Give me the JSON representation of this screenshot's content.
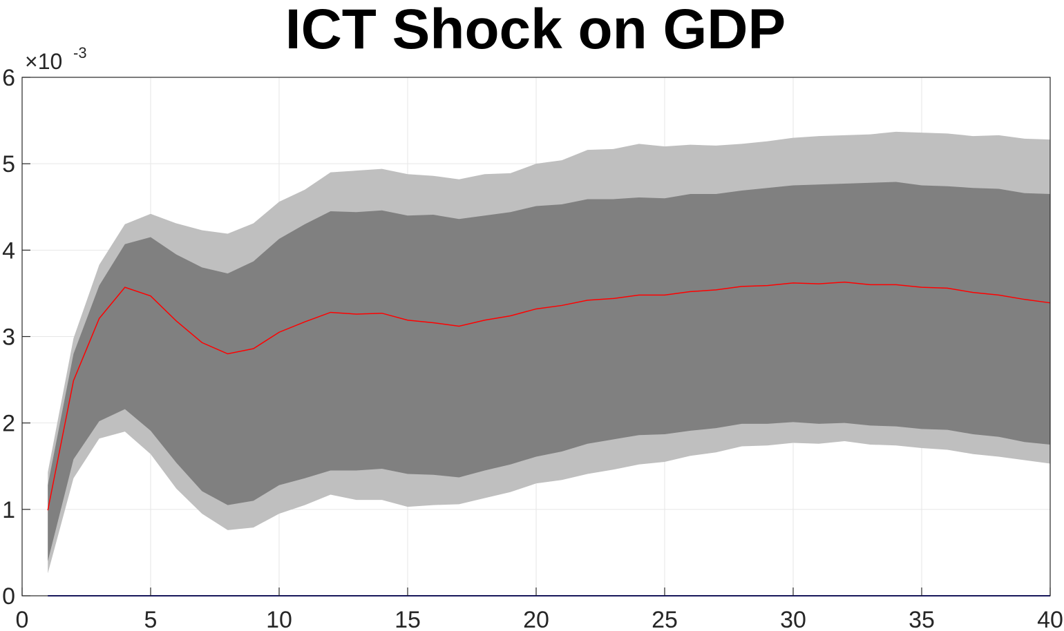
{
  "chart_data": {
    "type": "area",
    "title": "ICT Shock on GDP",
    "xlabel": "",
    "ylabel": "",
    "xlim": [
      0,
      40
    ],
    "ylim": [
      0,
      0.006
    ],
    "y_exponent_label": {
      "base": "×10",
      "exponent": "-3"
    },
    "x_ticks": [
      "0",
      "5",
      "10",
      "15",
      "20",
      "25",
      "30",
      "35",
      "40"
    ],
    "y_ticks": [
      "0",
      "1",
      "2",
      "3",
      "4",
      "5",
      "6"
    ],
    "grid": true,
    "colors": {
      "outer_band": "#bfbfbf",
      "inner_band": "#808080",
      "median": "#ff0000",
      "zero_line": "#0000aa",
      "grid": "#e6e6e6",
      "axis": "#262626"
    },
    "x": [
      1,
      2,
      3,
      4,
      5,
      6,
      7,
      8,
      9,
      10,
      11,
      12,
      13,
      14,
      15,
      16,
      17,
      18,
      19,
      20,
      21,
      22,
      23,
      24,
      25,
      26,
      27,
      28,
      29,
      30,
      31,
      32,
      33,
      34,
      35,
      36,
      37,
      38,
      39,
      40
    ],
    "series": [
      {
        "values": [
          0.00143,
          0.00298,
          0.00383,
          0.0043,
          0.00442,
          0.00431,
          0.00423,
          0.00419,
          0.00431,
          0.00456,
          0.0047,
          0.0049,
          0.00492,
          0.00494,
          0.00488,
          0.00486,
          0.00482,
          0.00488,
          0.00489,
          0.005,
          0.00504,
          0.00516,
          0.00517,
          0.00523,
          0.0052,
          0.00522,
          0.00521,
          0.00523,
          0.00526,
          0.0053,
          0.00532,
          0.00533,
          0.00534,
          0.00537,
          0.00536,
          0.00535,
          0.00532,
          0.00533,
          0.00529,
          0.00528
        ]
      },
      {
        "values": [
          0.00128,
          0.0028,
          0.00359,
          0.00407,
          0.00415,
          0.00395,
          0.0038,
          0.00373,
          0.00387,
          0.00413,
          0.0043,
          0.00445,
          0.00444,
          0.00446,
          0.0044,
          0.00441,
          0.00436,
          0.0044,
          0.00444,
          0.00451,
          0.00453,
          0.00459,
          0.00459,
          0.00461,
          0.0046,
          0.00465,
          0.00465,
          0.00469,
          0.00472,
          0.00475,
          0.00476,
          0.00477,
          0.00478,
          0.00479,
          0.00475,
          0.00474,
          0.00472,
          0.00471,
          0.00466,
          0.00465
        ]
      },
      {
        "values": [
          0.00099,
          0.00249,
          0.00321,
          0.00357,
          0.00347,
          0.00318,
          0.00293,
          0.0028,
          0.00286,
          0.00305,
          0.00317,
          0.00328,
          0.00326,
          0.00327,
          0.00319,
          0.00316,
          0.00312,
          0.00319,
          0.00324,
          0.00332,
          0.00336,
          0.00342,
          0.00344,
          0.00348,
          0.00348,
          0.00352,
          0.00354,
          0.00358,
          0.00359,
          0.00362,
          0.00361,
          0.00363,
          0.0036,
          0.0036,
          0.00357,
          0.00356,
          0.00351,
          0.00348,
          0.00343,
          0.00339
        ]
      },
      {
        "values": [
          0.0004,
          0.00158,
          0.00202,
          0.00216,
          0.00191,
          0.00154,
          0.00121,
          0.00105,
          0.0011,
          0.00128,
          0.00136,
          0.00145,
          0.00145,
          0.00147,
          0.00141,
          0.0014,
          0.00137,
          0.00145,
          0.00152,
          0.00161,
          0.00167,
          0.00176,
          0.00181,
          0.00186,
          0.00187,
          0.00191,
          0.00194,
          0.00199,
          0.00199,
          0.00201,
          0.00199,
          0.002,
          0.00197,
          0.00196,
          0.00193,
          0.00192,
          0.00187,
          0.00184,
          0.00178,
          0.00175
        ]
      },
      {
        "values": [
          0.00026,
          0.00136,
          0.00182,
          0.0019,
          0.00164,
          0.00124,
          0.00095,
          0.00076,
          0.00079,
          0.00095,
          0.00105,
          0.00117,
          0.00111,
          0.00111,
          0.00103,
          0.00105,
          0.00106,
          0.00113,
          0.0012,
          0.0013,
          0.00134,
          0.00141,
          0.00146,
          0.00152,
          0.00155,
          0.00162,
          0.00166,
          0.00173,
          0.00174,
          0.00177,
          0.00176,
          0.00179,
          0.00175,
          0.00174,
          0.00171,
          0.00169,
          0.00164,
          0.00161,
          0.00157,
          0.00153
        ]
      }
    ],
    "zero_line": 0
  }
}
